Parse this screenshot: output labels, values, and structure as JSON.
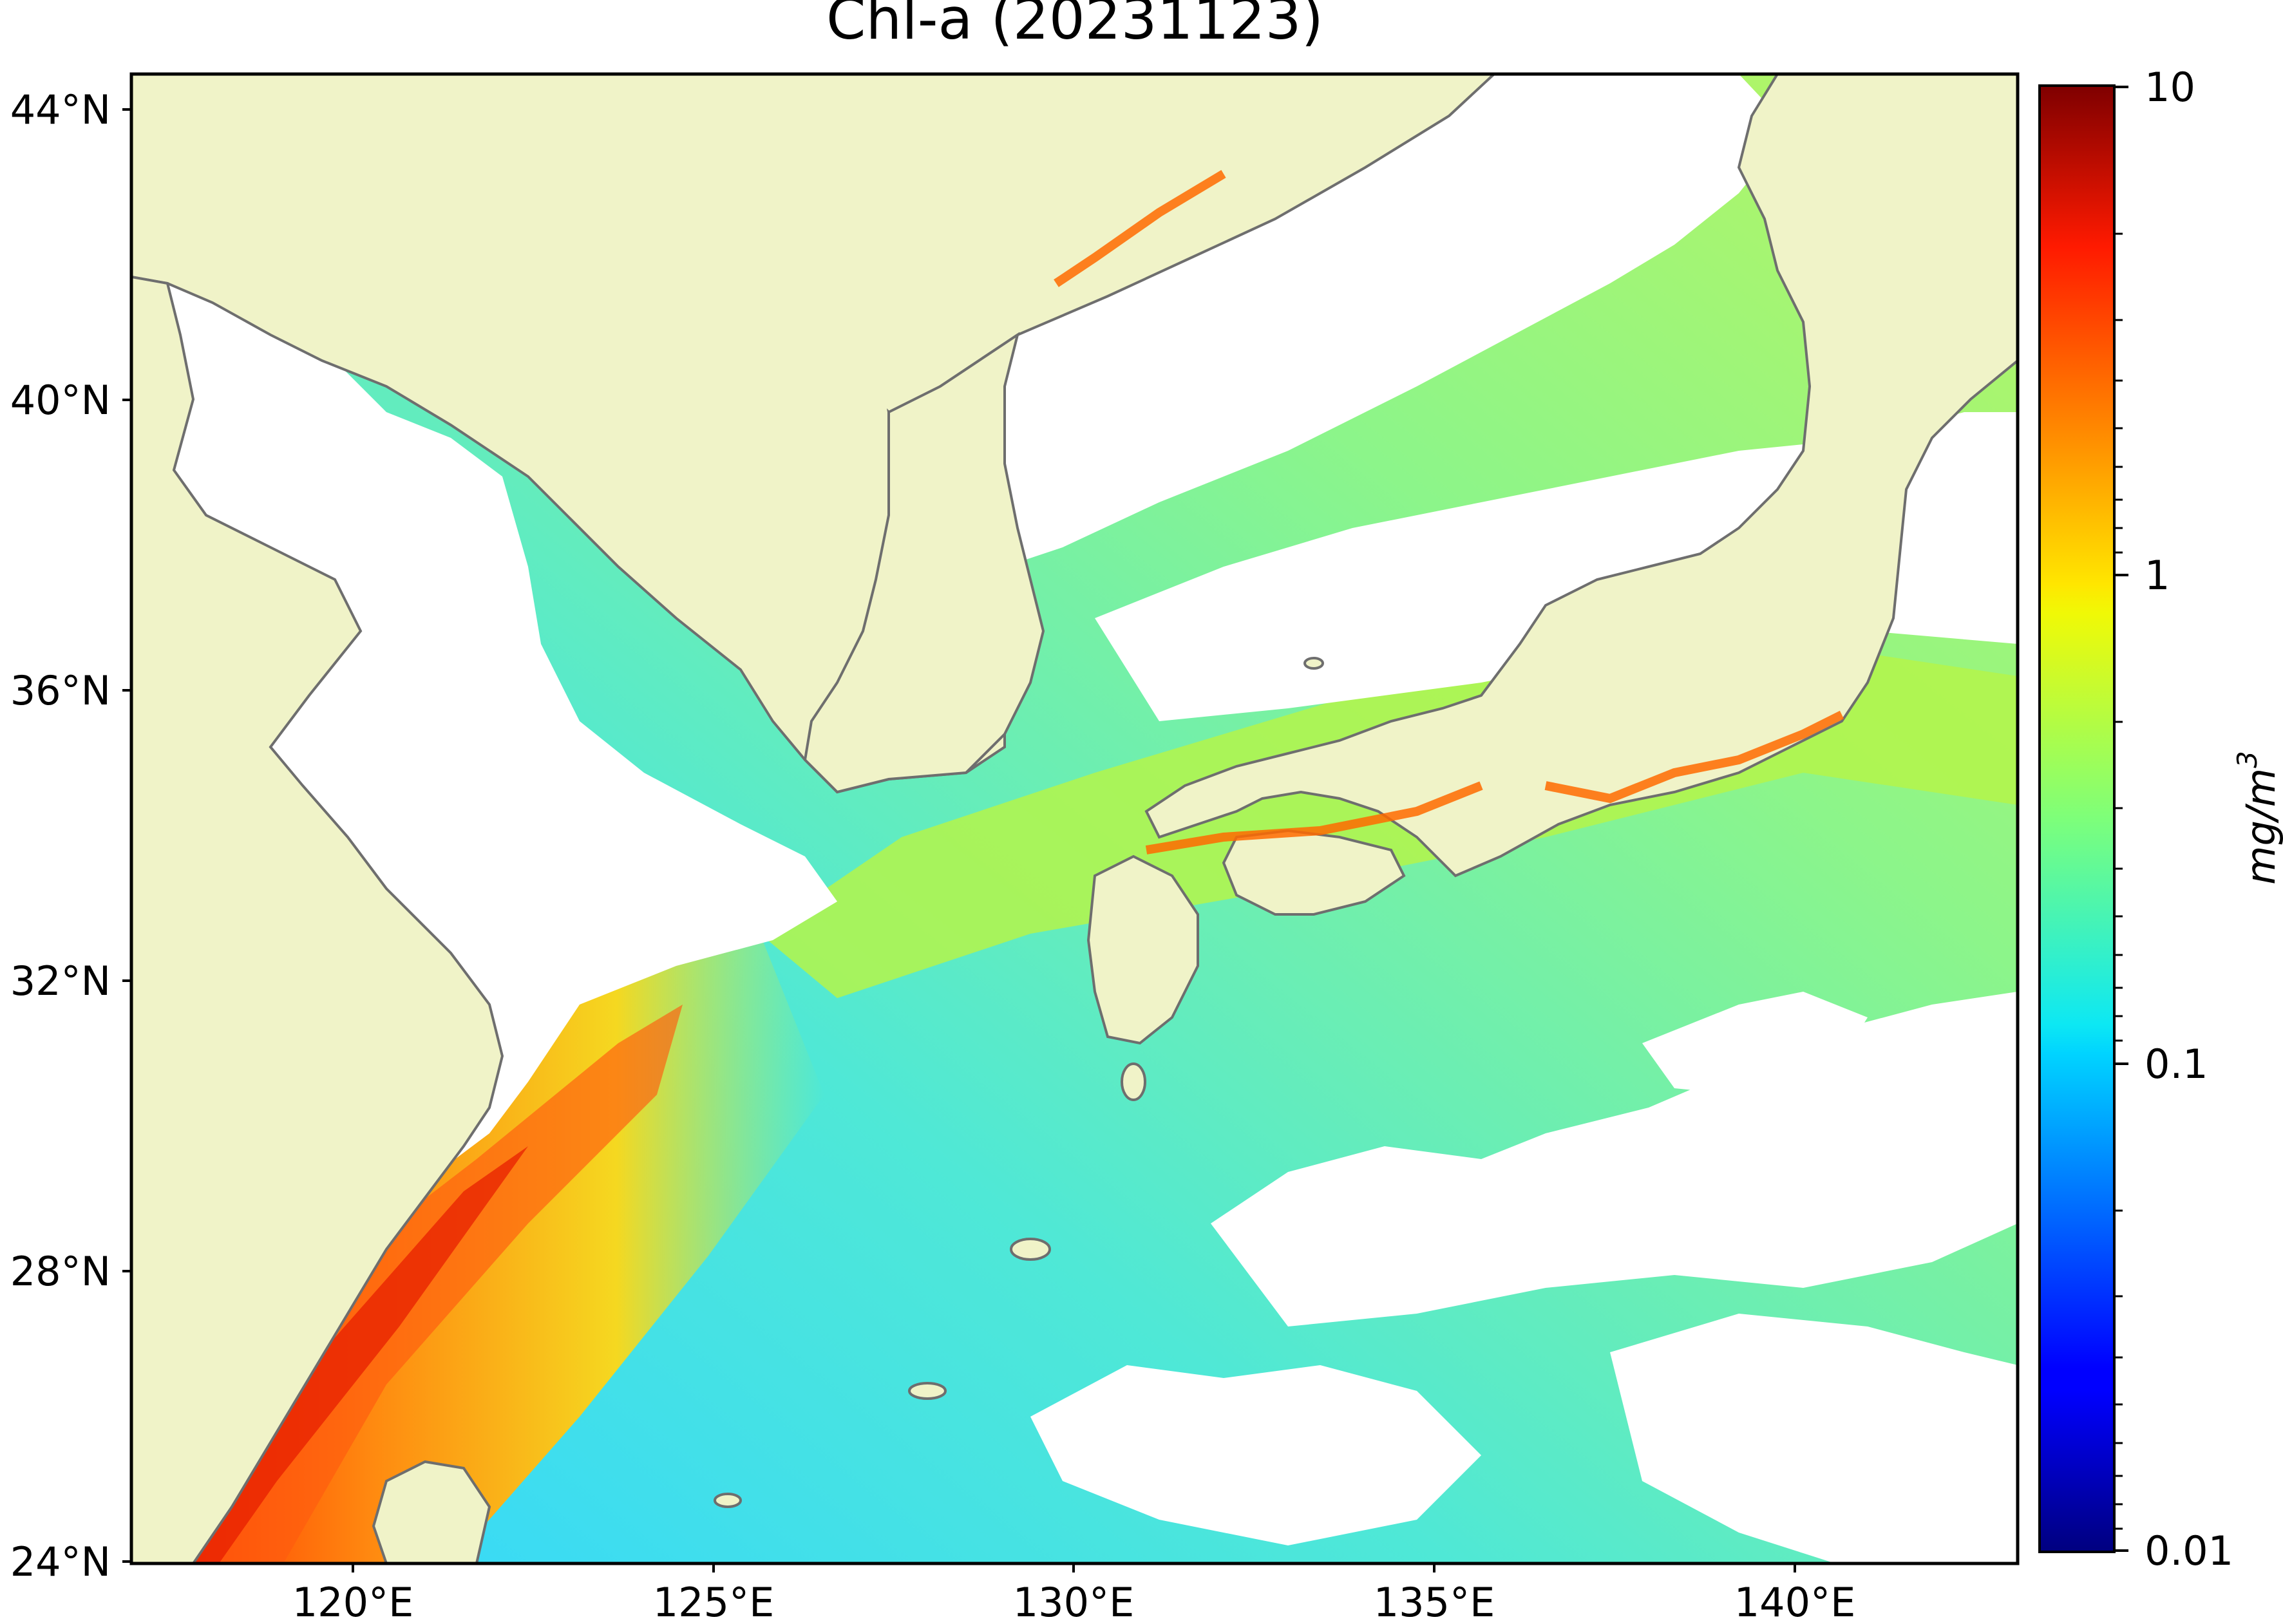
{
  "title": "Chl-a (20231123)",
  "map": {
    "lat_ticks": [
      "44°N",
      "40°N",
      "36°N",
      "32°N",
      "28°N",
      "24°N"
    ],
    "lon_ticks": [
      "120°E",
      "125°E",
      "130°E",
      "135°E",
      "140°E"
    ],
    "land_color": "#f0f3c8",
    "cloud_color": "#ffffff",
    "coastline_color": "#6e6e6e"
  },
  "colorbar": {
    "label_main": "mg/m",
    "label_sup": "3",
    "ticks": [
      "10",
      "1",
      "0.1",
      "0.01"
    ],
    "scale": "log",
    "range": [
      0.01,
      10
    ],
    "colormap": "jet"
  },
  "chart_data": {
    "type": "heatmap",
    "title": "Chl-a (20231123)",
    "variable": "Chl-a",
    "units": "mg/m3",
    "date": "20231123",
    "xlim": [
      117,
      143
    ],
    "ylim": [
      24,
      44.5
    ],
    "color_scale": "log",
    "color_range": [
      0.01,
      10
    ]
  }
}
